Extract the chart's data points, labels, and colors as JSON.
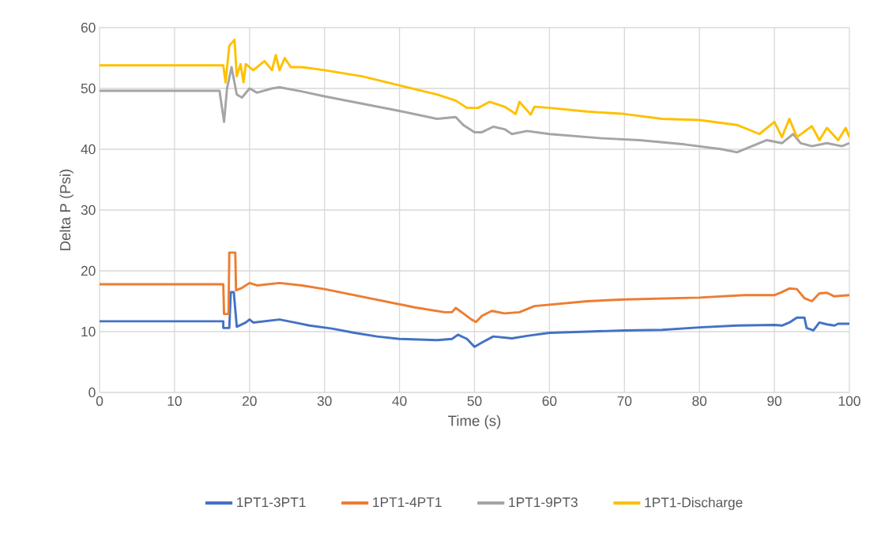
{
  "chart_data": {
    "type": "line",
    "xlabel": "Time (s)",
    "ylabel": "Delta P (Psi)",
    "xlim": [
      0,
      100
    ],
    "ylim": [
      0,
      60
    ],
    "xticks": [
      0,
      10,
      20,
      30,
      40,
      50,
      60,
      70,
      80,
      90,
      100
    ],
    "yticks": [
      0,
      10,
      20,
      30,
      40,
      50,
      60
    ],
    "grid": true,
    "legend": "bottom",
    "marker": "none",
    "line_style": "solid",
    "series": [
      {
        "name": "1PT1-3PT1",
        "color": "#4472c4",
        "x": [
          0,
          16.5,
          16.5,
          17.3,
          17.5,
          17.9,
          18.3,
          19.5,
          20,
          20.5,
          24,
          26,
          28,
          31,
          34,
          37,
          40,
          45,
          47,
          47.8,
          49,
          50,
          51,
          52.5,
          55,
          57,
          60,
          65,
          70,
          75,
          80,
          85,
          90,
          91,
          92,
          93,
          94,
          94.3,
          95.2,
          96,
          97,
          98,
          98.5,
          100
        ],
        "values": [
          11.7,
          11.7,
          10.6,
          10.6,
          16.5,
          16.5,
          10.8,
          11.5,
          12,
          11.5,
          12,
          11.5,
          11,
          10.5,
          9.8,
          9.2,
          8.8,
          8.6,
          8.8,
          9.5,
          8.8,
          7.5,
          8.2,
          9.2,
          8.9,
          9.3,
          9.8,
          10,
          10.2,
          10.3,
          10.7,
          11,
          11.1,
          11,
          11.5,
          12.3,
          12.3,
          10.6,
          10.2,
          11.5,
          11.2,
          11,
          11.3,
          11.3
        ]
      },
      {
        "name": "1PT1-4PT1",
        "color": "#ed7d31",
        "x": [
          0,
          16.5,
          16.6,
          17.2,
          17.3,
          18.1,
          18.2,
          19,
          20,
          21,
          24,
          27,
          30,
          34,
          38,
          42,
          46,
          47,
          47.5,
          48.5,
          49.6,
          50.2,
          51,
          52.3,
          54,
          56,
          58,
          65,
          70,
          80,
          86,
          90,
          91,
          92,
          93,
          94,
          95,
          96,
          97,
          98,
          100
        ],
        "values": [
          17.8,
          17.8,
          12.9,
          12.9,
          23,
          23,
          16.8,
          17.2,
          18,
          17.6,
          18,
          17.6,
          17,
          16,
          15,
          14,
          13.2,
          13.2,
          13.9,
          13,
          12,
          11.6,
          12.6,
          13.4,
          13,
          13.2,
          14.2,
          15,
          15.3,
          15.6,
          16,
          16,
          16.5,
          17.1,
          17,
          15.5,
          15,
          16.3,
          16.4,
          15.8,
          16
        ]
      },
      {
        "name": "1PT1-9PT3",
        "color": "#a5a5a5",
        "x": [
          0,
          16,
          16.6,
          17,
          17.6,
          18.3,
          19,
          20,
          21,
          23,
          24,
          27,
          30,
          35,
          40,
          45,
          47.5,
          48.5,
          50,
          51,
          52.5,
          54,
          55,
          57,
          60,
          67,
          72,
          78,
          83,
          85,
          87,
          89,
          91,
          92.5,
          93.5,
          95,
          97,
          99,
          100
        ],
        "values": [
          49.6,
          49.6,
          44.5,
          50,
          53.5,
          49,
          48.5,
          50,
          49.3,
          50,
          50.2,
          49.5,
          48.7,
          47.5,
          46.3,
          45,
          45.3,
          44,
          42.8,
          42.8,
          43.7,
          43.3,
          42.5,
          43,
          42.5,
          41.8,
          41.5,
          40.8,
          40,
          39.5,
          40.5,
          41.5,
          41,
          42.5,
          41,
          40.5,
          41,
          40.5,
          41
        ]
      },
      {
        "name": "1PT1-Discharge",
        "color": "#ffc000",
        "x": [
          0,
          16.5,
          16.8,
          17.3,
          18,
          18.3,
          18.8,
          19.2,
          19.5,
          20.5,
          22,
          23,
          23.5,
          24,
          24.7,
          25.5,
          27,
          30,
          35,
          40,
          45,
          47.5,
          49,
          50.5,
          52,
          54,
          55.5,
          56,
          57.5,
          58,
          60,
          65,
          70,
          75,
          80,
          85,
          88,
          90,
          91,
          92,
          93,
          95,
          96,
          97,
          98.5,
          99.5,
          100
        ],
        "values": [
          53.8,
          53.8,
          51,
          57,
          58,
          52,
          54,
          51,
          54,
          53,
          54.5,
          53,
          55.5,
          53,
          55,
          53.5,
          53.5,
          53,
          52,
          50.5,
          49,
          48,
          46.8,
          46.8,
          47.8,
          47,
          45.8,
          47.8,
          45.7,
          47,
          46.8,
          46.2,
          45.8,
          45,
          44.8,
          44,
          42.5,
          44.5,
          42,
          45,
          42,
          43.8,
          41.5,
          43.5,
          41.5,
          43.5,
          42
        ]
      }
    ]
  }
}
